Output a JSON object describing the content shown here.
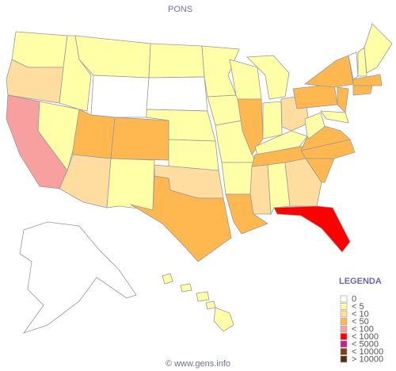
{
  "title": "PONS",
  "legend": {
    "title": "LEGENDA",
    "items": [
      {
        "label": "0",
        "color": "#ffffff"
      },
      {
        "label": "< 5",
        "color": "#ffffa8"
      },
      {
        "label": "< 10",
        "color": "#ffdca0"
      },
      {
        "label": "< 50",
        "color": "#ffb850"
      },
      {
        "label": "< 100",
        "color": "#f8a0a0"
      },
      {
        "label": "< 1000",
        "color": "#ff0000"
      },
      {
        "label": "< 5000",
        "color": "#c02090"
      },
      {
        "label": "< 10000",
        "color": "#804010"
      },
      {
        "label": "> 10000",
        "color": "#503010"
      }
    ]
  },
  "footer": "© www.gens.info"
}
